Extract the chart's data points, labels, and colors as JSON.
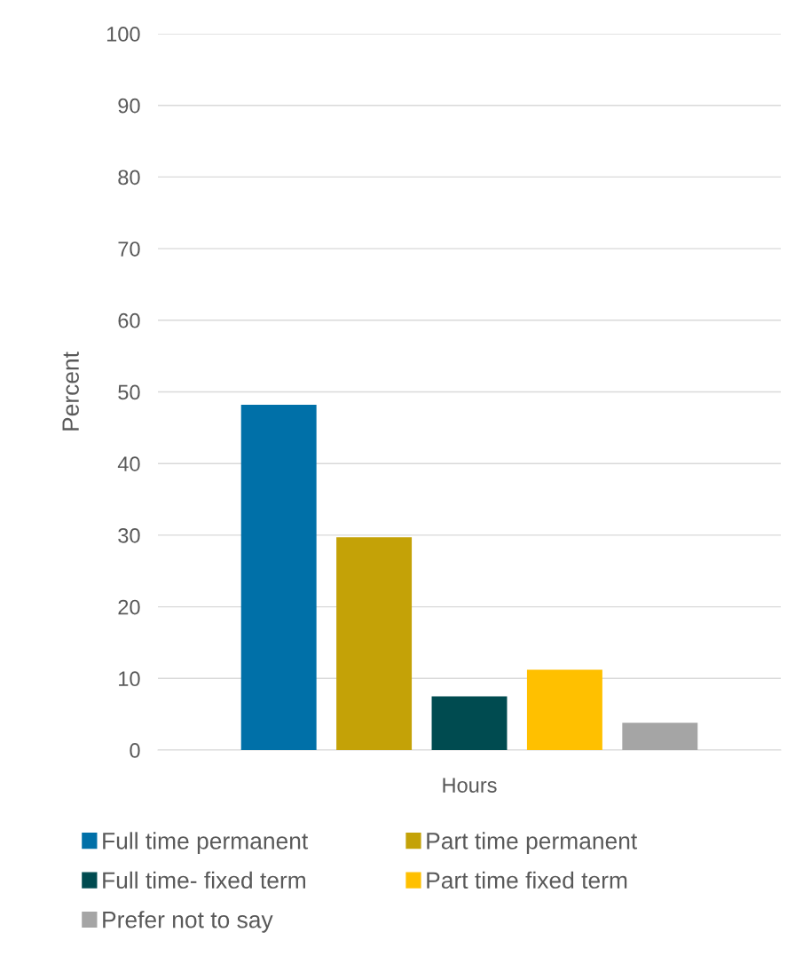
{
  "chart_data": {
    "type": "bar",
    "ylabel": "Percent",
    "categories": [
      "Hours"
    ],
    "series": [
      {
        "name": "Full time permanent",
        "color": "#0070a8",
        "values": [
          48.2
        ]
      },
      {
        "name": "Part time permanent",
        "color": "#c4a207",
        "values": [
          29.7
        ]
      },
      {
        "name": "Full time- fixed term",
        "color": "#004b50",
        "values": [
          7.5
        ]
      },
      {
        "name": "Part time fixed term",
        "color": "#ffc000",
        "values": [
          11.2
        ]
      },
      {
        "name": "Prefer not to say",
        "color": "#a5a5a5",
        "values": [
          3.8
        ]
      }
    ],
    "ylim": [
      0,
      100
    ],
    "yticks": [
      0,
      10,
      20,
      30,
      40,
      50,
      60,
      70,
      80,
      90,
      100
    ],
    "grid": "y",
    "legend": "bottom"
  }
}
